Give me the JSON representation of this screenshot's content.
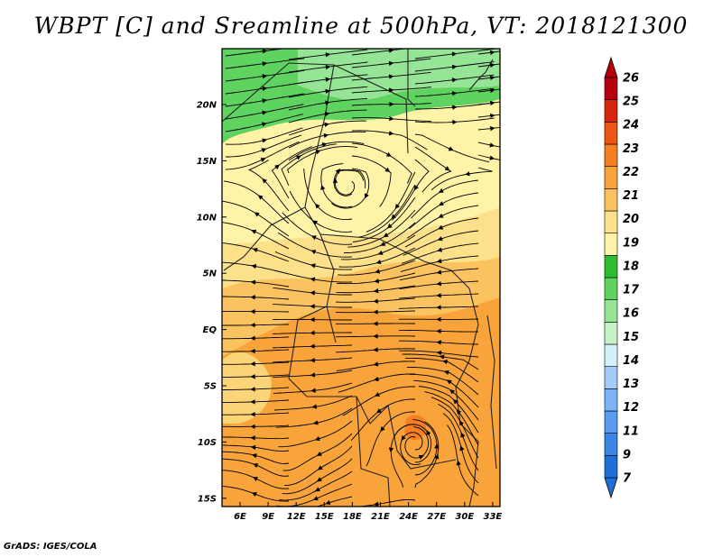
{
  "title": "WBPT [C] and Sreamline at 500hPa, VT: 2018121300",
  "footer": "GrADS: IGES/COLA",
  "map": {
    "lon_ticks": [
      "6E",
      "9E",
      "12E",
      "15E",
      "18E",
      "21E",
      "24E",
      "27E",
      "30E",
      "33E"
    ],
    "lat_ticks": [
      "20N",
      "15N",
      "10N",
      "5N",
      "EQ",
      "5S",
      "10S",
      "15S"
    ]
  },
  "colorbar": {
    "labels": [
      "7",
      "9",
      "11",
      "12",
      "13",
      "14",
      "15",
      "16",
      "17",
      "18",
      "19",
      "20",
      "21",
      "22",
      "23",
      "24",
      "25",
      "26"
    ],
    "colors": [
      "#1f6fd9",
      "#3a86e6",
      "#5a9cef",
      "#7cb4f5",
      "#a3cdf8",
      "#d6f0fb",
      "#c4f2c4",
      "#96e496",
      "#5fd35f",
      "#2ebd2e",
      "#fff3a8",
      "#fde18a",
      "#fbc35f",
      "#f9a43a",
      "#f57f22",
      "#ee5414",
      "#d7260c",
      "#b5000c"
    ]
  }
}
